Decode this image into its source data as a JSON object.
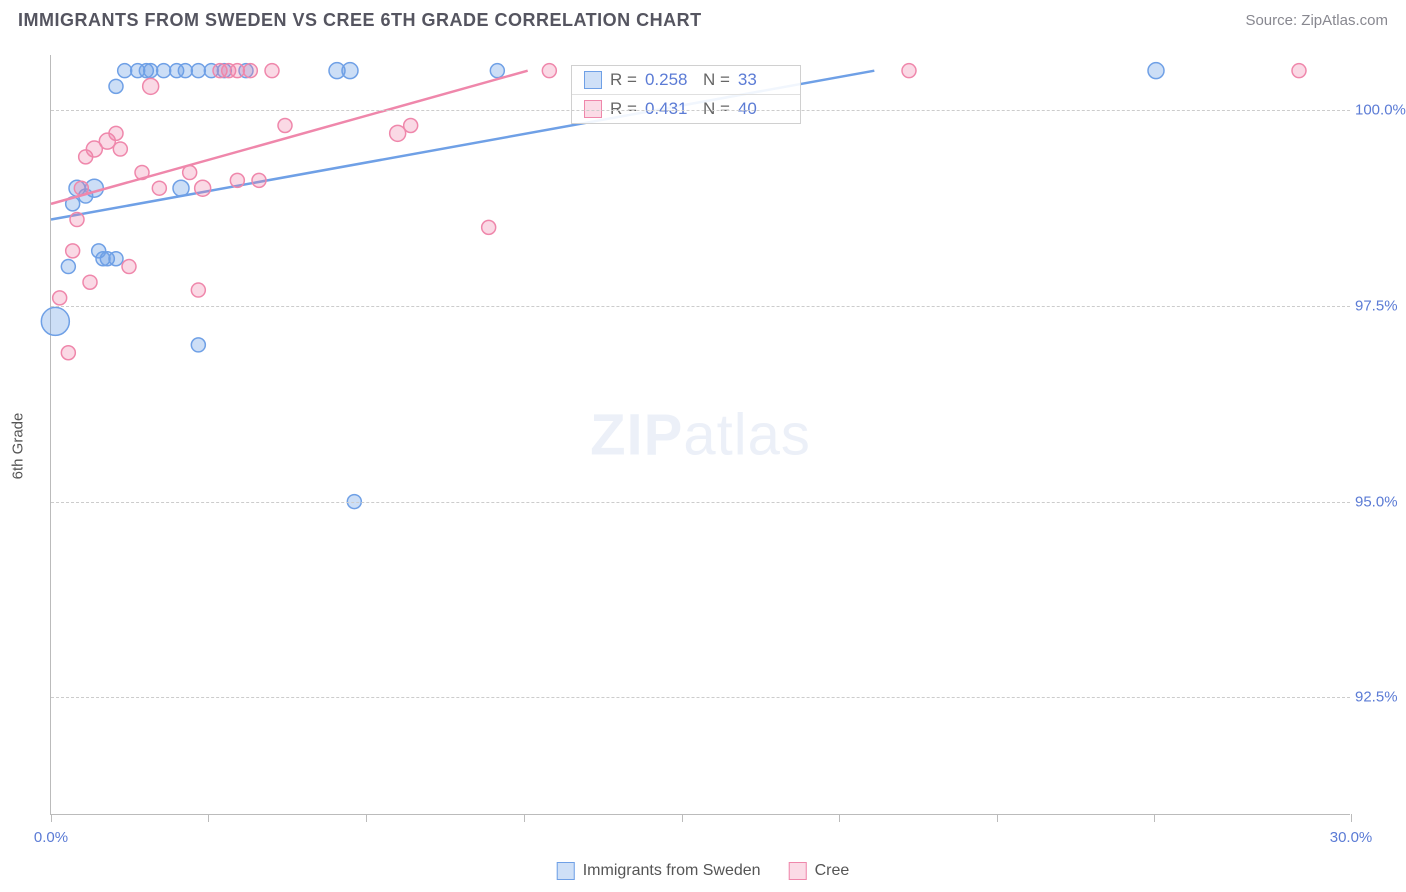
{
  "title": "IMMIGRANTS FROM SWEDEN VS CREE 6TH GRADE CORRELATION CHART",
  "source": "Source: ZipAtlas.com",
  "y_axis_label": "6th Grade",
  "watermark_bold": "ZIP",
  "watermark_light": "atlas",
  "chart": {
    "type": "scatter",
    "xlim": [
      0,
      30
    ],
    "ylim": [
      91,
      100.7
    ],
    "x_ticks": [
      0,
      3.63,
      7.27,
      10.91,
      14.55,
      18.18,
      21.82,
      25.45,
      30
    ],
    "x_tick_labels_shown": {
      "0": "0.0%",
      "30": "30.0%"
    },
    "y_ticks": [
      92.5,
      95.0,
      97.5,
      100.0
    ],
    "y_tick_labels": [
      "92.5%",
      "95.0%",
      "97.5%",
      "100.0%"
    ],
    "grid_color": "#cccccc",
    "axis_color": "#bbbbbb",
    "tick_label_color": "#5b7bd5",
    "series": [
      {
        "name": "Immigrants from Sweden",
        "color_fill": "rgba(110,160,230,0.35)",
        "color_stroke": "#6fa0e6",
        "legend_fill": "#cfe0f7",
        "legend_stroke": "#6fa0e6",
        "R": "0.258",
        "N": "33",
        "trend": {
          "x1": 0,
          "y1": 98.6,
          "x2": 19,
          "y2": 100.5
        },
        "points": [
          {
            "x": 0.1,
            "y": 97.3,
            "r": 14
          },
          {
            "x": 0.4,
            "y": 98.0,
            "r": 7
          },
          {
            "x": 0.5,
            "y": 98.8,
            "r": 7
          },
          {
            "x": 0.6,
            "y": 99.0,
            "r": 8
          },
          {
            "x": 0.8,
            "y": 98.9,
            "r": 7
          },
          {
            "x": 1.0,
            "y": 99.0,
            "r": 9
          },
          {
            "x": 1.2,
            "y": 98.1,
            "r": 7
          },
          {
            "x": 1.3,
            "y": 98.1,
            "r": 7
          },
          {
            "x": 1.5,
            "y": 98.1,
            "r": 7
          },
          {
            "x": 1.1,
            "y": 98.2,
            "r": 7
          },
          {
            "x": 1.7,
            "y": 100.5,
            "r": 7
          },
          {
            "x": 2.0,
            "y": 100.5,
            "r": 7
          },
          {
            "x": 2.2,
            "y": 100.5,
            "r": 7
          },
          {
            "x": 2.3,
            "y": 100.5,
            "r": 7
          },
          {
            "x": 2.6,
            "y": 100.5,
            "r": 7
          },
          {
            "x": 2.9,
            "y": 100.5,
            "r": 7
          },
          {
            "x": 3.1,
            "y": 100.5,
            "r": 7
          },
          {
            "x": 3.4,
            "y": 100.5,
            "r": 7
          },
          {
            "x": 3.7,
            "y": 100.5,
            "r": 7
          },
          {
            "x": 4.0,
            "y": 100.5,
            "r": 7
          },
          {
            "x": 4.5,
            "y": 100.5,
            "r": 7
          },
          {
            "x": 3.0,
            "y": 99.0,
            "r": 8
          },
          {
            "x": 6.6,
            "y": 100.5,
            "r": 8
          },
          {
            "x": 6.9,
            "y": 100.5,
            "r": 8
          },
          {
            "x": 10.3,
            "y": 100.5,
            "r": 7
          },
          {
            "x": 7.0,
            "y": 95.0,
            "r": 7
          },
          {
            "x": 3.4,
            "y": 97.0,
            "r": 7
          },
          {
            "x": 1.5,
            "y": 100.3,
            "r": 7
          },
          {
            "x": 25.5,
            "y": 100.5,
            "r": 8
          }
        ]
      },
      {
        "name": "Cree",
        "color_fill": "rgba(240,130,170,0.30)",
        "color_stroke": "#ef87ab",
        "legend_fill": "#fbdbe6",
        "legend_stroke": "#ef87ab",
        "R": "0.431",
        "N": "40",
        "trend": {
          "x1": 0,
          "y1": 98.8,
          "x2": 11,
          "y2": 100.5
        },
        "points": [
          {
            "x": 0.2,
            "y": 97.6,
            "r": 7
          },
          {
            "x": 0.4,
            "y": 96.9,
            "r": 7
          },
          {
            "x": 0.5,
            "y": 98.2,
            "r": 7
          },
          {
            "x": 0.6,
            "y": 98.6,
            "r": 7
          },
          {
            "x": 0.7,
            "y": 99.0,
            "r": 7
          },
          {
            "x": 0.8,
            "y": 99.4,
            "r": 7
          },
          {
            "x": 1.0,
            "y": 99.5,
            "r": 8
          },
          {
            "x": 1.3,
            "y": 99.6,
            "r": 8
          },
          {
            "x": 1.6,
            "y": 99.5,
            "r": 7
          },
          {
            "x": 1.8,
            "y": 98.0,
            "r": 7
          },
          {
            "x": 0.9,
            "y": 97.8,
            "r": 7
          },
          {
            "x": 2.1,
            "y": 99.2,
            "r": 7
          },
          {
            "x": 2.5,
            "y": 99.0,
            "r": 7
          },
          {
            "x": 2.3,
            "y": 100.3,
            "r": 8
          },
          {
            "x": 3.4,
            "y": 97.7,
            "r": 7
          },
          {
            "x": 3.2,
            "y": 99.2,
            "r": 7
          },
          {
            "x": 3.9,
            "y": 100.5,
            "r": 7
          },
          {
            "x": 4.1,
            "y": 100.5,
            "r": 7
          },
          {
            "x": 4.3,
            "y": 100.5,
            "r": 7
          },
          {
            "x": 4.6,
            "y": 100.5,
            "r": 7
          },
          {
            "x": 4.8,
            "y": 99.1,
            "r": 7
          },
          {
            "x": 5.1,
            "y": 100.5,
            "r": 7
          },
          {
            "x": 5.4,
            "y": 99.8,
            "r": 7
          },
          {
            "x": 3.5,
            "y": 99.0,
            "r": 8
          },
          {
            "x": 8.0,
            "y": 99.7,
            "r": 8
          },
          {
            "x": 8.3,
            "y": 99.8,
            "r": 7
          },
          {
            "x": 10.1,
            "y": 98.5,
            "r": 7
          },
          {
            "x": 11.5,
            "y": 100.5,
            "r": 7
          },
          {
            "x": 19.8,
            "y": 100.5,
            "r": 7
          },
          {
            "x": 28.8,
            "y": 100.5,
            "r": 7
          },
          {
            "x": 1.5,
            "y": 99.7,
            "r": 7
          },
          {
            "x": 4.3,
            "y": 99.1,
            "r": 7
          }
        ]
      }
    ]
  },
  "stats_legend": {
    "r_label": "R =",
    "n_label": "N ="
  },
  "bottom_legend": {
    "label_a": "Immigrants from Sweden",
    "label_b": "Cree"
  }
}
